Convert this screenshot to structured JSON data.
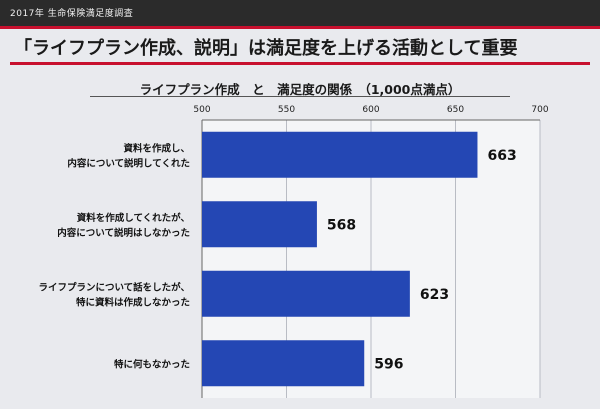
{
  "header": {
    "source": "2017年 生命保険満足度調査",
    "headline": "「ライフプラン作成、説明」は満足度を上げる活動として重要"
  },
  "chart_data": {
    "type": "bar",
    "orientation": "horizontal",
    "title": "ライフプラン作成　と　満足度の関係　（1,000点満点）",
    "categories": [
      [
        "資料を作成し、",
        "内容について説明してくれた"
      ],
      [
        "資料を作成してくれたが、",
        "内容について説明はしなかった"
      ],
      [
        "ライフプランについて話をしたが、",
        "特に資料は作成しなかった"
      ],
      [
        "特に何もなかった"
      ]
    ],
    "values": [
      663,
      568,
      623,
      596
    ],
    "xlim": [
      500,
      700
    ],
    "xticks": [
      "500",
      "550",
      "600",
      "650",
      "700"
    ],
    "grid": true,
    "bar_color": "#2447b4"
  }
}
